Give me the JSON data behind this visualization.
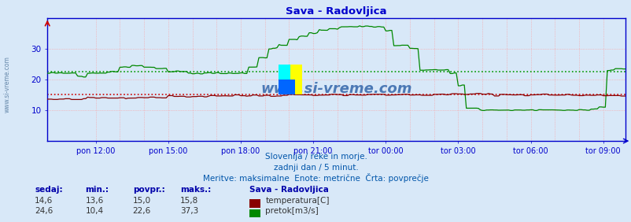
{
  "title": "Sava - Radovljica",
  "title_color": "#0000cc",
  "bg_color": "#d8e8f8",
  "plot_bg_color": "#d8e8f8",
  "grid_color_h": "#ff9999",
  "grid_color_v": "#ff9999",
  "avg_line_color_temp": "#cc0000",
  "avg_line_color_flow": "#009900",
  "watermark": "www.si-vreme.com",
  "x_labels": [
    "pon 12:00",
    "pon 15:00",
    "pon 18:00",
    "pon 21:00",
    "tor 00:00",
    "tor 03:00",
    "tor 06:00",
    "tor 09:00"
  ],
  "y_ticks": [
    10,
    20,
    30
  ],
  "ylim": [
    0,
    40
  ],
  "temp_avg": 15.0,
  "flow_avg": 22.6,
  "temp_color": "#880000",
  "flow_color": "#008800",
  "footer_line1": "Slovenija / reke in morje.",
  "footer_line2": "zadnji dan / 5 minut.",
  "footer_line3": "Meritve: maksimalne  Enote: metrične  Črta: povprečje",
  "footer_color": "#0055aa",
  "table_headers": [
    "sedaj:",
    "min.:",
    "povpr.:",
    "maks.:"
  ],
  "table_header_color": "#0000aa",
  "table_data_temp": [
    "14,6",
    "13,6",
    "15,0",
    "15,8"
  ],
  "table_data_flow": [
    "24,6",
    "10,4",
    "22,6",
    "37,3"
  ],
  "legend_title": "Sava - Radovljica",
  "legend_temp": "temperatura[C]",
  "legend_flow": "pretok[m3/s]",
  "n_points": 288,
  "left_label": "www.si-vreme.com",
  "left_label_color": "#6688aa",
  "spine_color": "#0000cc",
  "tick_color": "#0000cc",
  "watermark_color": "#3366aa"
}
